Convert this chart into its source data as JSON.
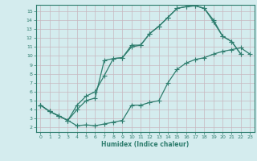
{
  "xlabel": "Humidex (Indice chaleur)",
  "bg_color": "#d4ecee",
  "grid_color": "#c0d8da",
  "line_color": "#2e7d6e",
  "xlim": [
    -0.5,
    23.5
  ],
  "ylim": [
    1.5,
    15.7
  ],
  "xticks": [
    0,
    1,
    2,
    3,
    4,
    5,
    6,
    7,
    8,
    9,
    10,
    11,
    12,
    13,
    14,
    15,
    16,
    17,
    18,
    19,
    20,
    21,
    22,
    23
  ],
  "yticks": [
    2,
    3,
    4,
    5,
    6,
    7,
    8,
    9,
    10,
    11,
    12,
    13,
    14,
    15
  ],
  "curve1_x": [
    0,
    1,
    2,
    3,
    4,
    5,
    6,
    7,
    8,
    9,
    10,
    11,
    12,
    13,
    14,
    15,
    16,
    17,
    18,
    19,
    20,
    21,
    22,
    23
  ],
  "curve1_y": [
    4.5,
    3.8,
    3.3,
    2.8,
    2.2,
    2.3,
    2.2,
    2.4,
    2.6,
    2.8,
    4.5,
    4.5,
    4.8,
    5.0,
    7.0,
    8.5,
    9.2,
    9.6,
    9.8,
    10.2,
    10.5,
    10.7,
    10.9,
    10.2
  ],
  "curve2_x": [
    0,
    1,
    2,
    3,
    4,
    5,
    6,
    7,
    8,
    9,
    10,
    11,
    12,
    13,
    14,
    15,
    16,
    17,
    18,
    19,
    20,
    21,
    22
  ],
  "curve2_y": [
    4.5,
    3.8,
    3.3,
    2.8,
    4.5,
    5.5,
    6.0,
    7.8,
    9.7,
    9.8,
    11.2,
    11.2,
    12.5,
    13.3,
    14.3,
    15.3,
    15.5,
    15.6,
    15.3,
    13.8,
    12.2,
    11.6,
    10.2
  ],
  "curve3_x": [
    0,
    1,
    2,
    3,
    4,
    5,
    6,
    7,
    8,
    9,
    10,
    11,
    12,
    13,
    14,
    15,
    16,
    17,
    18,
    19,
    20,
    21,
    22
  ],
  "curve3_y": [
    4.5,
    3.8,
    3.3,
    2.8,
    4.0,
    5.0,
    5.3,
    9.5,
    9.7,
    9.8,
    11.0,
    11.2,
    12.5,
    13.3,
    14.3,
    15.3,
    15.5,
    15.6,
    15.3,
    14.0,
    12.2,
    11.6,
    10.2
  ]
}
